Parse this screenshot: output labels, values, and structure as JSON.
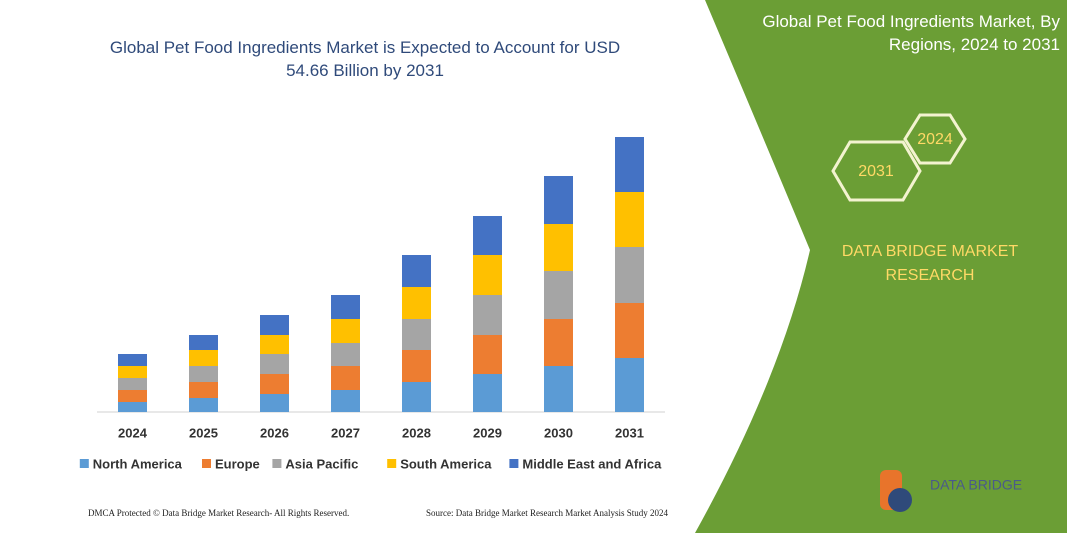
{
  "chart_data": {
    "type": "bar",
    "stacked": true,
    "title": "Global Pet Food Ingredients Market is Expected to Account for USD 54.66 Billion by 2031",
    "categories": [
      "2024",
      "2025",
      "2026",
      "2027",
      "2028",
      "2029",
      "2030",
      "2031"
    ],
    "series": [
      {
        "name": "North America",
        "color": "#5b9bd5",
        "values": [
          10,
          14,
          18,
          22,
          30,
          38,
          46,
          54
        ]
      },
      {
        "name": "Europe",
        "color": "#ed7d31",
        "values": [
          12,
          16,
          20,
          24,
          32,
          39,
          47,
          55
        ]
      },
      {
        "name": "Asia Pacific",
        "color": "#a5a5a5",
        "values": [
          12,
          16,
          20,
          23,
          31,
          40,
          48,
          56
        ]
      },
      {
        "name": "South America",
        "color": "#ffc000",
        "values": [
          12,
          16,
          19,
          24,
          32,
          40,
          47,
          55
        ]
      },
      {
        "name": "Middle East and Africa",
        "color": "#4472c4",
        "values": [
          12,
          15,
          20,
          24,
          32,
          39,
          48,
          55
        ]
      }
    ],
    "ylim": [
      0,
      280
    ],
    "legend": "bottom"
  },
  "panel": {
    "title": "Global Pet Food Ingredients Market, By Regions, 2024 to 2031",
    "hex_1": "2024",
    "hex_2": "2031",
    "brand": "DATA BRIDGE MARKET RESEARCH"
  },
  "logo": "DATA BRIDGE",
  "footer": {
    "left": "DMCA Protected © Data Bridge Market Research- All Rights Reserved.",
    "right": "Source: Data Bridge Market Research Market Analysis Study 2024"
  }
}
